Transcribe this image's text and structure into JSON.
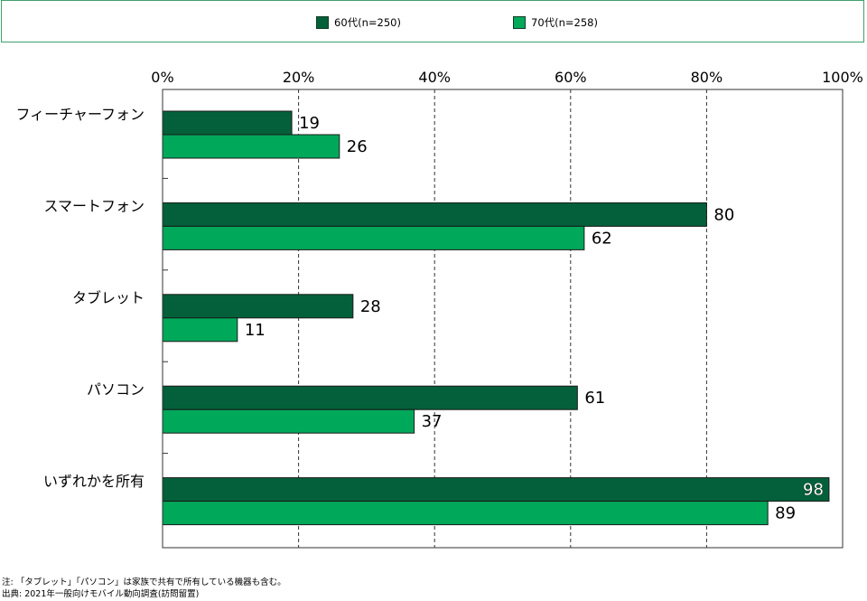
{
  "legend": {
    "items": [
      {
        "label": "60代(n=250)",
        "color": "#04603a"
      },
      {
        "label": "70代(n=258)",
        "color": "#00a85a"
      }
    ]
  },
  "chart_data": {
    "type": "bar",
    "orientation": "horizontal",
    "categories": [
      "フィーチャーフォン",
      "スマートフォン",
      "タブレット",
      "パソコン",
      "いずれかを所有"
    ],
    "series": [
      {
        "name": "60代(n=250)",
        "values": [
          19,
          80,
          28,
          61,
          98
        ],
        "color": "#04603a"
      },
      {
        "name": "70代(n=258)",
        "values": [
          26,
          62,
          11,
          37,
          89
        ],
        "color": "#00a85a"
      }
    ],
    "xlim": [
      0,
      100
    ],
    "xticks": [
      "0%",
      "20%",
      "40%",
      "60%",
      "80%",
      "100%"
    ],
    "grid": true,
    "legend_position": "top"
  },
  "footnotes": {
    "note": "注: 「タブレット」「パソコン」は家族で共有で所有している機器も含む。",
    "source": "出典: 2021年一般向けモバイル動向調査(訪問留置)"
  }
}
